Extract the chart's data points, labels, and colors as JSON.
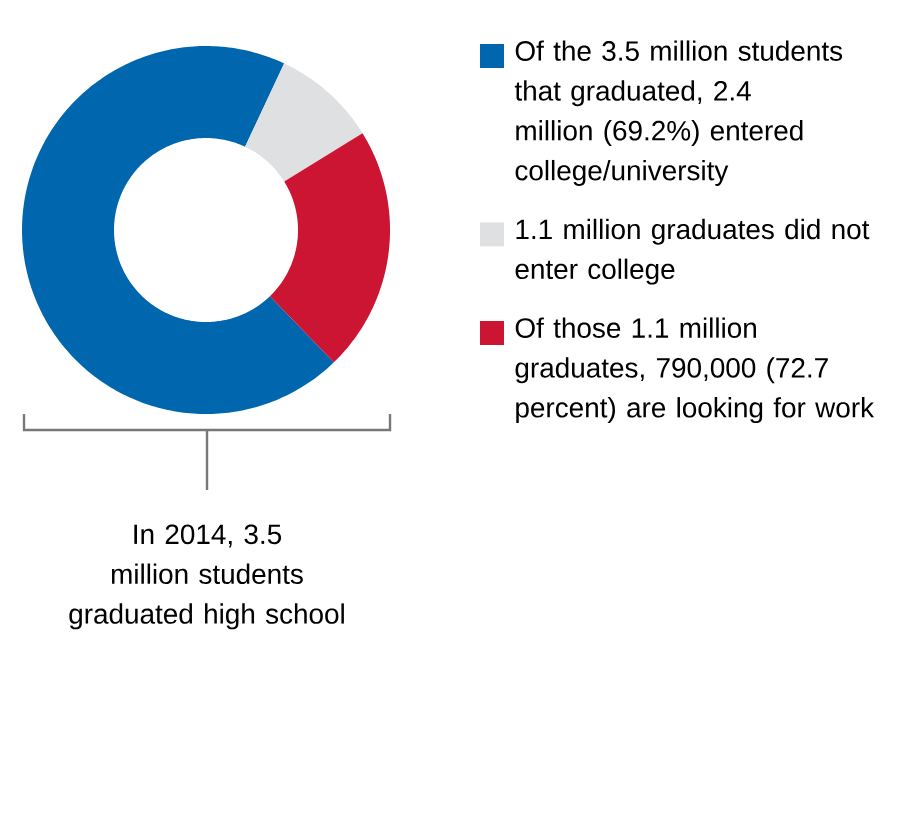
{
  "chart_data": {
    "type": "donut",
    "categories": [
      "Of the 3.5 million students that graduated, 2.4 million (69.2%) entered college/university",
      "1.1 million graduates did not enter college",
      "Of those 1.1 million graduates, 790,000 (72.7 percent) are looking for work"
    ],
    "values": [
      69.2,
      9.2,
      21.6
    ],
    "colors": [
      "#0066ad",
      "#dfe0e2",
      "#cc1433"
    ],
    "legend": "right",
    "annotations": [
      "In 2014, 3.5 million students graduated high school"
    ]
  }
}
